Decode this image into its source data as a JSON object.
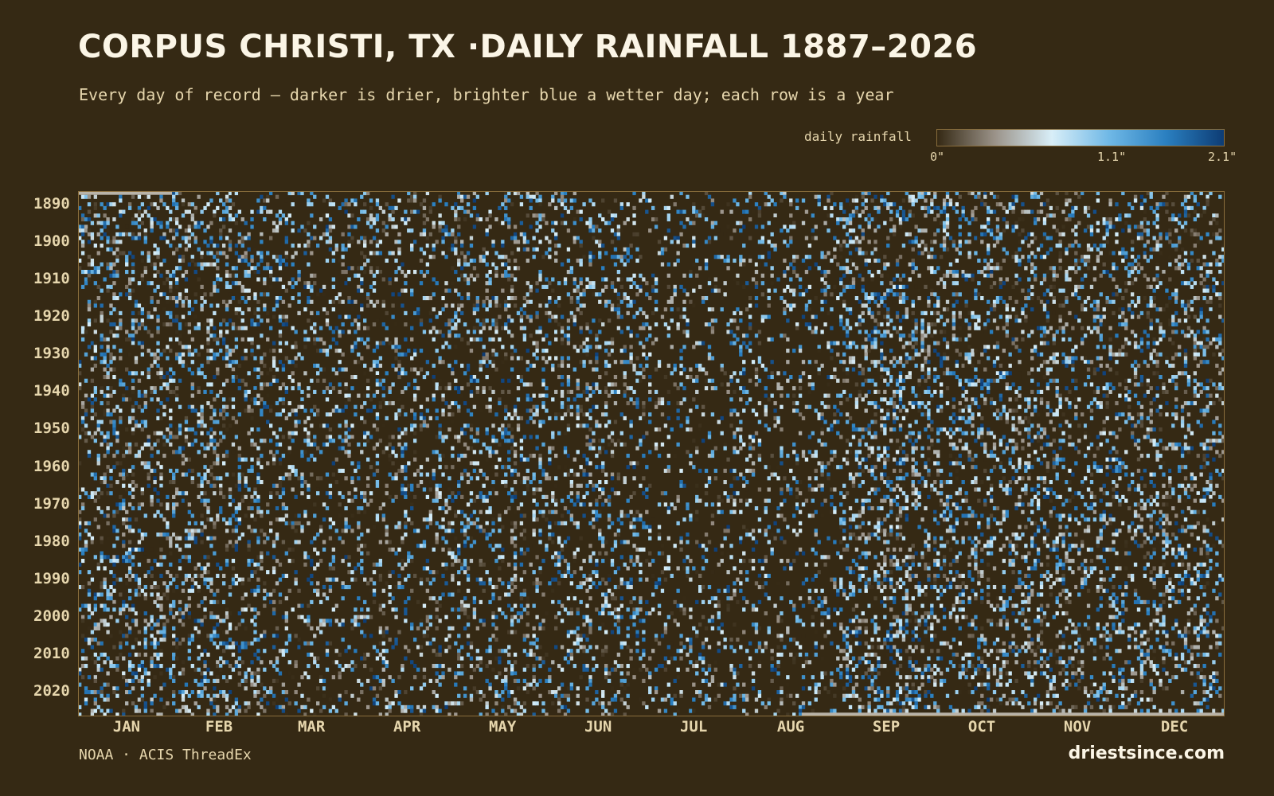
{
  "title": "CORPUS CHRISTI, TX ·DAILY RAINFALL 1887–2026",
  "subtitle": "Every day of record — darker is drier, brighter blue a wetter day; each row is a year",
  "legend": {
    "label": "daily rainfall",
    "ticks": [
      "0\"",
      "1.1\"",
      "2.1\""
    ],
    "colors": [
      "#352914",
      "#9a9288",
      "#d8eef8",
      "#6fb8e6",
      "#2a7fc0",
      "#0d3c74"
    ]
  },
  "footer": {
    "source": "NOAA · ACIS ThreadEx",
    "site": "driestsince.com"
  },
  "chart_data": {
    "type": "heatmap",
    "title": "CORPUS CHRISTI, TX ·DAILY RAINFALL 1887–2026",
    "subtitle": "Every day of record — darker is drier, brighter blue a wetter day; each row is a year",
    "x": {
      "unit": "day of year",
      "range": [
        1,
        366
      ]
    },
    "y": {
      "unit": "year",
      "range": [
        1887,
        2026
      ]
    },
    "value_range": [
      0,
      2.1
    ],
    "value_unit": "inches",
    "x_tick_labels": [
      "JAN",
      "FEB",
      "MAR",
      "APR",
      "MAY",
      "JUN",
      "JUL",
      "AUG",
      "SEP",
      "OCT",
      "NOV",
      "DEC"
    ],
    "y_tick_labels": [
      "1890",
      "1900",
      "1910",
      "1920",
      "1930",
      "1940",
      "1950",
      "1960",
      "1970",
      "1980",
      "1990",
      "2000",
      "2010",
      "2020"
    ],
    "colorbar_label": "daily rainfall",
    "colorbar_ticks": [
      "0\"",
      "1.1\"",
      "2.1\""
    ],
    "background_color": "#352914",
    "wet_day_fraction_by_month": [
      0.27,
      0.26,
      0.2,
      0.2,
      0.23,
      0.22,
      0.15,
      0.16,
      0.3,
      0.26,
      0.25,
      0.26
    ]
  }
}
